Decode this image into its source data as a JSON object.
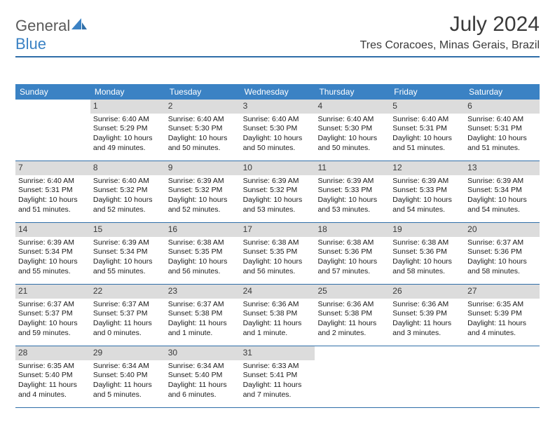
{
  "logo": {
    "word1": "General",
    "word2": "Blue"
  },
  "title": "July 2024",
  "location": "Tres Coracoes, Minas Gerais, Brazil",
  "theme": {
    "header_bg": "#3b82c4",
    "header_text": "#ffffff",
    "daynum_bg": "#dcdcdc",
    "rule": "#2f6ea8",
    "text": "#1a1a1a",
    "title_color": "#3a3a3a"
  },
  "day_headers": [
    "Sunday",
    "Monday",
    "Tuesday",
    "Wednesday",
    "Thursday",
    "Friday",
    "Saturday"
  ],
  "weeks": [
    [
      {
        "n": "",
        "sr": "",
        "ss": "",
        "dl": ""
      },
      {
        "n": "1",
        "sr": "Sunrise: 6:40 AM",
        "ss": "Sunset: 5:29 PM",
        "dl": "Daylight: 10 hours and 49 minutes."
      },
      {
        "n": "2",
        "sr": "Sunrise: 6:40 AM",
        "ss": "Sunset: 5:30 PM",
        "dl": "Daylight: 10 hours and 50 minutes."
      },
      {
        "n": "3",
        "sr": "Sunrise: 6:40 AM",
        "ss": "Sunset: 5:30 PM",
        "dl": "Daylight: 10 hours and 50 minutes."
      },
      {
        "n": "4",
        "sr": "Sunrise: 6:40 AM",
        "ss": "Sunset: 5:30 PM",
        "dl": "Daylight: 10 hours and 50 minutes."
      },
      {
        "n": "5",
        "sr": "Sunrise: 6:40 AM",
        "ss": "Sunset: 5:31 PM",
        "dl": "Daylight: 10 hours and 51 minutes."
      },
      {
        "n": "6",
        "sr": "Sunrise: 6:40 AM",
        "ss": "Sunset: 5:31 PM",
        "dl": "Daylight: 10 hours and 51 minutes."
      }
    ],
    [
      {
        "n": "7",
        "sr": "Sunrise: 6:40 AM",
        "ss": "Sunset: 5:31 PM",
        "dl": "Daylight: 10 hours and 51 minutes."
      },
      {
        "n": "8",
        "sr": "Sunrise: 6:40 AM",
        "ss": "Sunset: 5:32 PM",
        "dl": "Daylight: 10 hours and 52 minutes."
      },
      {
        "n": "9",
        "sr": "Sunrise: 6:39 AM",
        "ss": "Sunset: 5:32 PM",
        "dl": "Daylight: 10 hours and 52 minutes."
      },
      {
        "n": "10",
        "sr": "Sunrise: 6:39 AM",
        "ss": "Sunset: 5:32 PM",
        "dl": "Daylight: 10 hours and 53 minutes."
      },
      {
        "n": "11",
        "sr": "Sunrise: 6:39 AM",
        "ss": "Sunset: 5:33 PM",
        "dl": "Daylight: 10 hours and 53 minutes."
      },
      {
        "n": "12",
        "sr": "Sunrise: 6:39 AM",
        "ss": "Sunset: 5:33 PM",
        "dl": "Daylight: 10 hours and 54 minutes."
      },
      {
        "n": "13",
        "sr": "Sunrise: 6:39 AM",
        "ss": "Sunset: 5:34 PM",
        "dl": "Daylight: 10 hours and 54 minutes."
      }
    ],
    [
      {
        "n": "14",
        "sr": "Sunrise: 6:39 AM",
        "ss": "Sunset: 5:34 PM",
        "dl": "Daylight: 10 hours and 55 minutes."
      },
      {
        "n": "15",
        "sr": "Sunrise: 6:39 AM",
        "ss": "Sunset: 5:34 PM",
        "dl": "Daylight: 10 hours and 55 minutes."
      },
      {
        "n": "16",
        "sr": "Sunrise: 6:38 AM",
        "ss": "Sunset: 5:35 PM",
        "dl": "Daylight: 10 hours and 56 minutes."
      },
      {
        "n": "17",
        "sr": "Sunrise: 6:38 AM",
        "ss": "Sunset: 5:35 PM",
        "dl": "Daylight: 10 hours and 56 minutes."
      },
      {
        "n": "18",
        "sr": "Sunrise: 6:38 AM",
        "ss": "Sunset: 5:36 PM",
        "dl": "Daylight: 10 hours and 57 minutes."
      },
      {
        "n": "19",
        "sr": "Sunrise: 6:38 AM",
        "ss": "Sunset: 5:36 PM",
        "dl": "Daylight: 10 hours and 58 minutes."
      },
      {
        "n": "20",
        "sr": "Sunrise: 6:37 AM",
        "ss": "Sunset: 5:36 PM",
        "dl": "Daylight: 10 hours and 58 minutes."
      }
    ],
    [
      {
        "n": "21",
        "sr": "Sunrise: 6:37 AM",
        "ss": "Sunset: 5:37 PM",
        "dl": "Daylight: 10 hours and 59 minutes."
      },
      {
        "n": "22",
        "sr": "Sunrise: 6:37 AM",
        "ss": "Sunset: 5:37 PM",
        "dl": "Daylight: 11 hours and 0 minutes."
      },
      {
        "n": "23",
        "sr": "Sunrise: 6:37 AM",
        "ss": "Sunset: 5:38 PM",
        "dl": "Daylight: 11 hours and 1 minute."
      },
      {
        "n": "24",
        "sr": "Sunrise: 6:36 AM",
        "ss": "Sunset: 5:38 PM",
        "dl": "Daylight: 11 hours and 1 minute."
      },
      {
        "n": "25",
        "sr": "Sunrise: 6:36 AM",
        "ss": "Sunset: 5:38 PM",
        "dl": "Daylight: 11 hours and 2 minutes."
      },
      {
        "n": "26",
        "sr": "Sunrise: 6:36 AM",
        "ss": "Sunset: 5:39 PM",
        "dl": "Daylight: 11 hours and 3 minutes."
      },
      {
        "n": "27",
        "sr": "Sunrise: 6:35 AM",
        "ss": "Sunset: 5:39 PM",
        "dl": "Daylight: 11 hours and 4 minutes."
      }
    ],
    [
      {
        "n": "28",
        "sr": "Sunrise: 6:35 AM",
        "ss": "Sunset: 5:40 PM",
        "dl": "Daylight: 11 hours and 4 minutes."
      },
      {
        "n": "29",
        "sr": "Sunrise: 6:34 AM",
        "ss": "Sunset: 5:40 PM",
        "dl": "Daylight: 11 hours and 5 minutes."
      },
      {
        "n": "30",
        "sr": "Sunrise: 6:34 AM",
        "ss": "Sunset: 5:40 PM",
        "dl": "Daylight: 11 hours and 6 minutes."
      },
      {
        "n": "31",
        "sr": "Sunrise: 6:33 AM",
        "ss": "Sunset: 5:41 PM",
        "dl": "Daylight: 11 hours and 7 minutes."
      },
      {
        "n": "",
        "sr": "",
        "ss": "",
        "dl": ""
      },
      {
        "n": "",
        "sr": "",
        "ss": "",
        "dl": ""
      },
      {
        "n": "",
        "sr": "",
        "ss": "",
        "dl": ""
      }
    ]
  ]
}
